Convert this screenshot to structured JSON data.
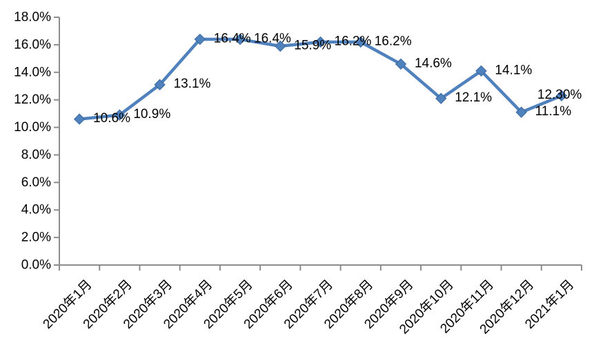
{
  "chart_data": {
    "type": "line",
    "categories": [
      "2020年1月",
      "2020年2月",
      "2020年3月",
      "2020年4月",
      "2020年5月",
      "2020年6月",
      "2020年7月",
      "2020年8月",
      "2020年9月",
      "2020年10月",
      "2020年11月",
      "2020年12月",
      "2021年1月"
    ],
    "values": [
      10.6,
      10.9,
      13.1,
      16.4,
      16.4,
      15.9,
      16.2,
      16.2,
      14.6,
      12.1,
      14.1,
      11.1,
      12.3
    ],
    "point_labels": [
      "10.6%",
      "10.9%",
      "13.1%",
      "16.4%",
      "16.4%",
      "15.9%",
      "16.2%",
      "16.2%",
      "14.6%",
      "12.1%",
      "14.1%",
      "11.1%",
      "12.30%"
    ],
    "ytick_labels": [
      "0.0%",
      "2.0%",
      "4.0%",
      "6.0%",
      "8.0%",
      "10.0%",
      "12.0%",
      "14.0%",
      "16.0%",
      "18.0%"
    ],
    "ytick_values": [
      0,
      2,
      4,
      6,
      8,
      10,
      12,
      14,
      16,
      18
    ],
    "ylim": [
      0,
      18
    ],
    "title": "",
    "xlabel": "",
    "ylabel": "",
    "grid": false,
    "legend": null,
    "marker": "diamond",
    "colors": {
      "line": "#4F81BD",
      "marker": "#4F81BD",
      "marker_edge": "#3B6AA0",
      "axis": "#8C8C8C",
      "text": "#000000",
      "background": "#FFFFFF"
    }
  }
}
